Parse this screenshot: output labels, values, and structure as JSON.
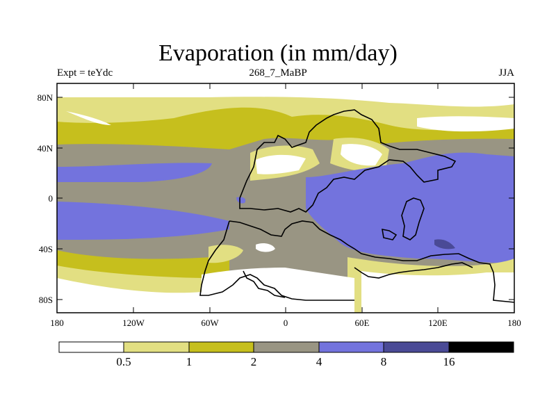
{
  "title": "Evaporation (in mm/day)",
  "subtitle_left": "Expt = teYdc",
  "subtitle_center": "268_7_MaBP",
  "subtitle_right": "JJA",
  "lat_labels": [
    "80N",
    "40N",
    "0",
    "40S",
    "80S"
  ],
  "lon_labels": [
    "180",
    "120W",
    "60W",
    "0",
    "60E",
    "120E",
    "180"
  ],
  "legend": {
    "colors": [
      "#ffffff",
      "#e2df82",
      "#c6bf1d",
      "#999583",
      "#7373dd",
      "#4a4a96",
      "#000000"
    ],
    "labels": [
      "0.5",
      "1",
      "2",
      "4",
      "8",
      "16"
    ]
  },
  "chart_data": {
    "type": "heatmap",
    "title": "Evaporation (in mm/day)",
    "variable": "Evaporation",
    "units": "mm/day",
    "experiment": "teYdc",
    "period": "268_7_MaBP",
    "season": "JJA",
    "x_ticks": [
      "180",
      "120W",
      "60W",
      "0",
      "60E",
      "120E",
      "180"
    ],
    "y_ticks": [
      "80N",
      "40N",
      "0",
      "40S",
      "80S"
    ],
    "xlim": [
      -180,
      180
    ],
    "ylim": [
      -90,
      90
    ],
    "contour_levels": [
      0.5,
      1,
      2,
      4,
      8,
      16
    ]
  }
}
